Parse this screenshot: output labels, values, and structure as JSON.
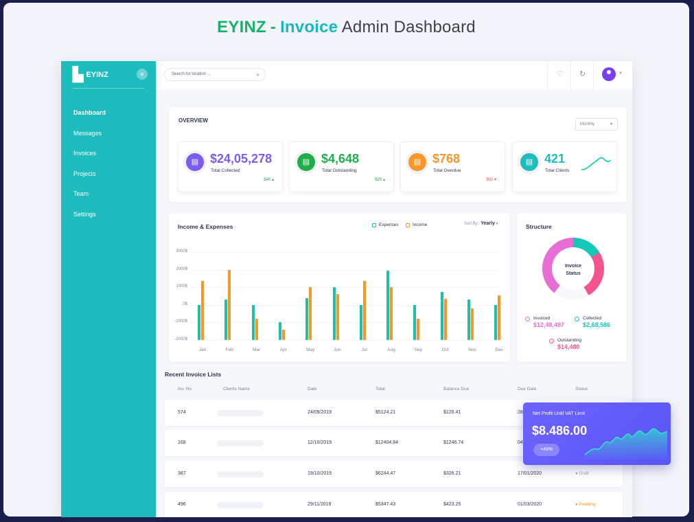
{
  "hero": {
    "brand": "EYINZ",
    "dash": "-",
    "invoice": "Invoice",
    "rest": "Admin Dashboard"
  },
  "sidebar": {
    "logo_text": "EYINZ",
    "items": [
      {
        "label": "Dashboard"
      },
      {
        "label": "Messages"
      },
      {
        "label": "Invoices"
      },
      {
        "label": "Projects"
      },
      {
        "label": "Team"
      },
      {
        "label": "Settings"
      }
    ]
  },
  "topbar": {
    "search_placeholder": "Search for location ...",
    "icons": [
      "search-icon",
      "bell-icon",
      "refresh-icon",
      "user-avatar-icon"
    ]
  },
  "overview": {
    "title": "OVERVIEW",
    "period": "Monthly",
    "stats": [
      {
        "value": "$24,05,278",
        "label": "Total Collected",
        "delta": "$40",
        "color": "#7b5cf0",
        "icon": "invoice-icon"
      },
      {
        "value": "$4,648",
        "label": "Total Outstanding",
        "delta": "$25",
        "color": "#1fae4a",
        "icon": "invoice-icon"
      },
      {
        "value": "$768",
        "label": "Total Overdue",
        "delta": "$02",
        "color": "#f7962b",
        "icon": "invoice-icon"
      },
      {
        "value": "421",
        "label": "Total Clients",
        "color": "#1fbcbe",
        "icon": "invoice-icon"
      }
    ]
  },
  "income_chart": {
    "title": "Income & Expenses",
    "legend_expenses": "Expenses",
    "legend_income": "Income",
    "sort_label": "Sort By:",
    "sort_value": "Yearly",
    "colors": {
      "expenses": "#1fbfa9",
      "income": "#f7962b"
    }
  },
  "chart_data": {
    "type": "bar",
    "title": "Income & Expenses",
    "categories": [
      "Jan",
      "Feb",
      "Mar",
      "Apr",
      "May",
      "Jun",
      "Jul",
      "Aug",
      "Sep",
      "Oct",
      "Nov",
      "Dec"
    ],
    "series": [
      {
        "name": "Expenses",
        "values": [
          0,
          3000,
          0,
          -10000,
          4000,
          10000,
          0,
          19500,
          0,
          7500,
          3000,
          0
        ]
      },
      {
        "name": "Income",
        "values": [
          13500,
          20000,
          -8000,
          -14000,
          10000,
          6000,
          13500,
          10000,
          -8000,
          3500,
          -2000,
          5500
        ]
      }
    ],
    "yticks": [
      "3000$",
      "2000$",
      "1000$",
      "0$",
      "-1000$",
      "-2000$"
    ],
    "ylim": [
      -20000,
      30000
    ]
  },
  "structure": {
    "title": "Structure",
    "center": [
      "Invoice",
      "Status"
    ],
    "invoiced_label": "Invoiced",
    "invoiced_value": "$12,48,487",
    "collected_label": "Collected",
    "collected_value": "$2,68,586",
    "outstanding_label": "Outstanding",
    "outstanding_value": "$14,480",
    "segments": [
      {
        "name": "Collected",
        "share": 0.16,
        "color": "#14c7b6"
      },
      {
        "name": "Outstanding",
        "share": 0.26,
        "color": "#f6548e"
      },
      {
        "name": "Other",
        "share": 0.18,
        "color": "#f7f8fb"
      },
      {
        "name": "Invoiced",
        "share": 0.4,
        "color": "#e66ed4"
      }
    ]
  },
  "recent": {
    "title": "Recent Invoice Lists",
    "columns": [
      "Inv. No",
      "Clients Name",
      "Date",
      "Total",
      "Balance Due",
      "Due Date",
      "Status"
    ],
    "rows": [
      {
        "inv": "574",
        "date": "24/09/2019",
        "total": "$5124.21",
        "balance": "$126.41",
        "due": "28/",
        "status": ""
      },
      {
        "inv": "168",
        "date": "12/10/2019",
        "total": "$12404.84",
        "balance": "$1246.74",
        "due": "04/",
        "status": ""
      },
      {
        "inv": "387",
        "date": "19/10/2019",
        "total": "$6244.47",
        "balance": "$326.21",
        "due": "17/01/2020",
        "status": "Draft"
      },
      {
        "inv": "496",
        "date": "29/11/2019",
        "total": "$5347.43",
        "balance": "$423.25",
        "due": "01/03/2020",
        "status": "Pending"
      }
    ]
  },
  "profit": {
    "label": "Net Profit Until VAT Limit",
    "value": "$8.486.00",
    "badge": "+48%"
  }
}
